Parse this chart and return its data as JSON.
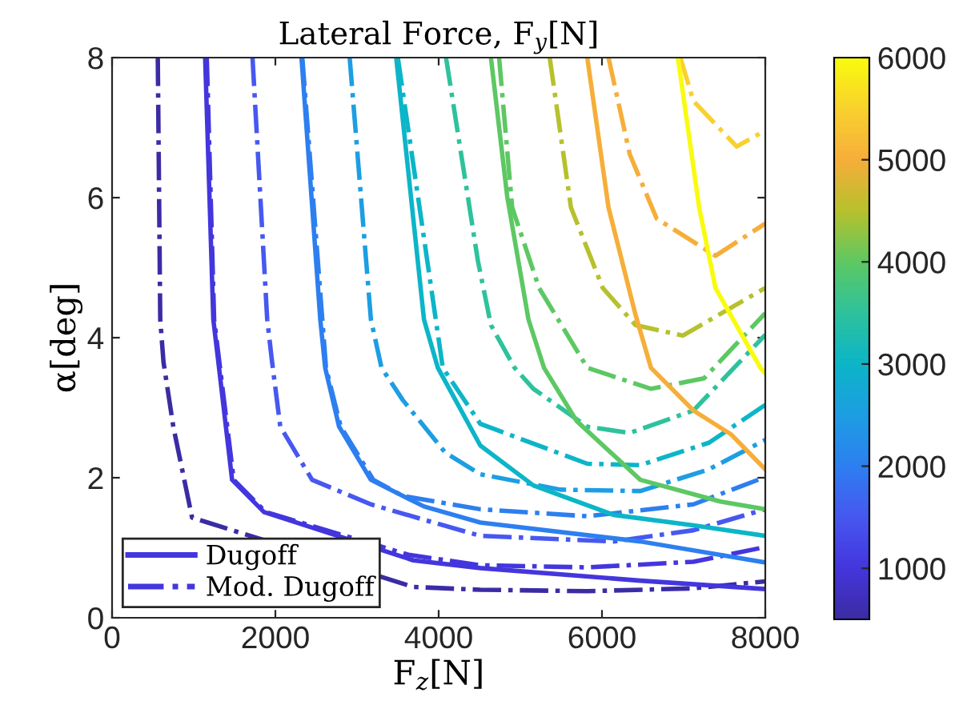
{
  "chart_data": {
    "type": "line",
    "title": "Lateral Force, F$_{y}$[N]",
    "xlabel": "F$_{z}$[N]",
    "ylabel": "α[deg]",
    "xlim": [
      0,
      8000
    ],
    "xticks": [
      0,
      2000,
      4000,
      6000,
      8000
    ],
    "ylim": [
      0,
      8
    ],
    "yticks": [
      0,
      2,
      4,
      6,
      8
    ],
    "clim": [
      500,
      6000
    ],
    "cticks": [
      1000,
      2000,
      3000,
      4000,
      5000,
      6000
    ],
    "grid": false,
    "legend": "bottom left",
    "marker": "none",
    "series": [
      {
        "color": "#3b2ca4",
        "line_style": "dashdot",
        "x": [
          560,
          590,
          630,
          750,
          980,
          3690,
          4510,
          5820,
          7120,
          8000
        ],
        "values": [
          8,
          4.26,
          3.65,
          2.73,
          1.43,
          0.44,
          0.4,
          0.38,
          0.42,
          0.52
        ]
      },
      {
        "name": "Dugoff",
        "color": "#4436dd",
        "line_style": "solid",
        "x": [
          1140,
          1240,
          1310,
          1470,
          1860,
          3690,
          4510,
          6470,
          8000
        ],
        "values": [
          8,
          4.26,
          3.57,
          1.97,
          1.51,
          0.82,
          0.71,
          0.53,
          0.41
        ]
      },
      {
        "name": "Mod. Dugoff",
        "color": "#4436dd",
        "line_style": "dashdot",
        "x": [
          1160,
          1250,
          1490,
          1880,
          3630,
          4510,
          5820,
          7120,
          8000
        ],
        "values": [
          8,
          4.26,
          1.97,
          1.51,
          0.9,
          0.75,
          0.72,
          0.8,
          1.01
        ]
      },
      {
        "color": "#4758f0",
        "line_style": "dashdot",
        "x": [
          1720,
          1900,
          1960,
          2060,
          2450,
          3170,
          3820,
          4510,
          6140,
          7120,
          8000
        ],
        "values": [
          8,
          4.26,
          3.65,
          2.73,
          1.97,
          1.62,
          1.4,
          1.17,
          1.09,
          1.25,
          1.55
        ]
      },
      {
        "color": "#2d7ff0",
        "line_style": "solid",
        "x": [
          2320,
          2550,
          2610,
          2780,
          3170,
          3820,
          4510,
          6470,
          8000
        ],
        "values": [
          8,
          4.26,
          3.57,
          2.73,
          1.97,
          1.59,
          1.36,
          1.09,
          0.79
        ]
      },
      {
        "color": "#2d7ff0",
        "line_style": "dashdot",
        "x": [
          2330,
          2620,
          2800,
          3200,
          3560,
          4510,
          5820,
          7120,
          8000
        ],
        "values": [
          8,
          3.57,
          2.73,
          1.97,
          1.74,
          1.55,
          1.45,
          1.62,
          2.01
        ]
      },
      {
        "color": "#1d9ee3",
        "line_style": "dashdot",
        "x": [
          2910,
          3170,
          3300,
          3560,
          4080,
          4510,
          5490,
          6470,
          7310,
          8000
        ],
        "values": [
          8,
          4.26,
          3.57,
          3.11,
          2.36,
          2.05,
          1.83,
          1.81,
          2.12,
          2.54
        ]
      },
      {
        "color": "#0cb5c8",
        "line_style": "solid",
        "x": [
          3480,
          3820,
          3990,
          4510,
          5160,
          6140,
          7120,
          8000
        ],
        "values": [
          8,
          4.26,
          3.57,
          2.46,
          1.89,
          1.47,
          1.32,
          1.17
        ]
      },
      {
        "color": "#0cb5c8",
        "line_style": "dashdot",
        "x": [
          3500,
          4050,
          4510,
          5820,
          6470,
          7310,
          8000
        ],
        "values": [
          8,
          3.57,
          2.77,
          2.2,
          2.18,
          2.5,
          3.04
        ]
      },
      {
        "color": "#2ec29c",
        "line_style": "dashdot",
        "x": [
          4090,
          4480,
          4640,
          4930,
          5160,
          5820,
          6340,
          7120,
          8000
        ],
        "values": [
          8,
          5.1,
          4.18,
          3.57,
          3.27,
          2.73,
          2.64,
          2.96,
          4.04
        ]
      },
      {
        "color": "#5dc863",
        "line_style": "solid",
        "x": [
          4640,
          4840,
          5100,
          5290,
          5690,
          6470,
          7450,
          8000
        ],
        "values": [
          8,
          6.01,
          4.26,
          3.57,
          2.81,
          1.97,
          1.66,
          1.55
        ]
      },
      {
        "color": "#5dc863",
        "line_style": "dashdot",
        "x": [
          4740,
          4900,
          5230,
          5820,
          6600,
          7250,
          8000
        ],
        "values": [
          8,
          5.86,
          4.71,
          3.57,
          3.27,
          3.42,
          4.35
        ]
      },
      {
        "color": "#b6c12d",
        "line_style": "dashdot",
        "x": [
          5360,
          5620,
          6010,
          6410,
          6990,
          8000
        ],
        "values": [
          8,
          5.86,
          4.71,
          4.18,
          4.03,
          4.71
        ]
      },
      {
        "color": "#f6ae3a",
        "line_style": "solid",
        "x": [
          5820,
          6080,
          6410,
          6600,
          7120,
          7580,
          8000
        ],
        "values": [
          8,
          5.86,
          4.33,
          3.57,
          2.96,
          2.62,
          2.12
        ]
      },
      {
        "color": "#f6ae3a",
        "line_style": "dashdot",
        "x": [
          6080,
          6340,
          6670,
          7390,
          8000
        ],
        "values": [
          8,
          6.62,
          5.7,
          5.17,
          5.63
        ]
      },
      {
        "color": "#f9d02e",
        "line_style": "dashdot",
        "x": [
          6960,
          7120,
          7650,
          8000
        ],
        "values": [
          8,
          7.38,
          6.73,
          6.96
        ]
      },
      {
        "color": "#f9fb0e",
        "line_style": "solid",
        "x": [
          6930,
          7190,
          7390,
          7940,
          8000
        ],
        "values": [
          8,
          5.86,
          4.71,
          3.57,
          3.49
        ]
      }
    ]
  }
}
